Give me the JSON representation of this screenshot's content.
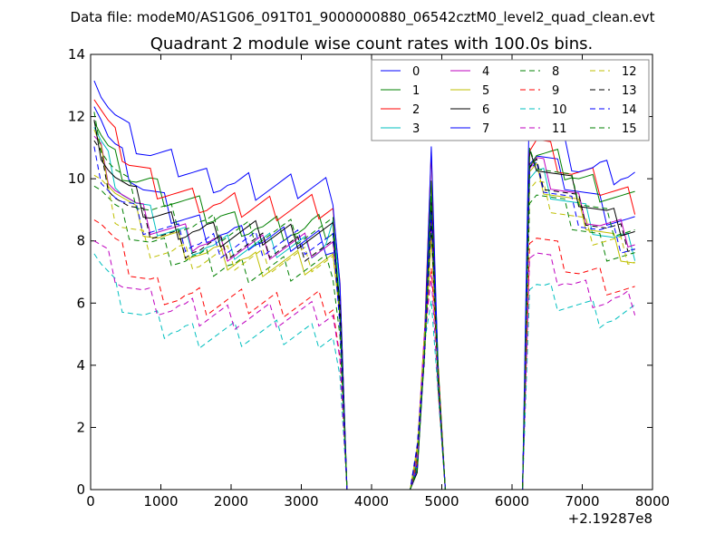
{
  "header": {
    "file_label": "Data file: modeM0/AS1G06_091T01_9000000880_06542cztM0_level2_quad_clean.evt"
  },
  "chart_data": {
    "type": "line",
    "title": "Quadrant 2 module wise count rates with 100.0s bins.",
    "xlabel": "",
    "ylabel": "",
    "x_offset_label": "+2.19287e8",
    "xlim": [
      0,
      8000
    ],
    "ylim": [
      0,
      14
    ],
    "x_ticks": [
      0,
      1000,
      2000,
      3000,
      4000,
      5000,
      6000,
      7000,
      8000
    ],
    "y_ticks": [
      0,
      2,
      4,
      6,
      8,
      10,
      12,
      14
    ],
    "grid": false,
    "legend": {
      "placement": "top-right",
      "columns": 4
    },
    "x": [
      50,
      150,
      250,
      350,
      450,
      550,
      650,
      750,
      850,
      950,
      1050,
      1150,
      1250,
      1350,
      1450,
      1550,
      1650,
      1750,
      1850,
      1950,
      2050,
      2150,
      2250,
      2350,
      2450,
      2550,
      2650,
      2750,
      2850,
      2950,
      3050,
      3150,
      3250,
      3350,
      3450,
      3550,
      3650,
      3750,
      3850,
      3950,
      4050,
      4150,
      4250,
      4350,
      4450,
      4550,
      4650,
      4750,
      4850,
      4950,
      5050,
      5150,
      5250,
      5350,
      5450,
      5550,
      5650,
      5750,
      5850,
      5950,
      6050,
      6150,
      6250,
      6350,
      6450,
      6550,
      6650,
      6750,
      6850,
      6950,
      7050,
      7150,
      7250,
      7350,
      7450,
      7550,
      7650,
      7750
    ],
    "series": [
      {
        "name": "0",
        "color": "#0000ff",
        "dash": "solid",
        "pre": [
          12.6,
          12.0,
          11.3,
          10.9,
          10.6,
          10.3,
          10.0,
          9.7,
          9.5,
          9.3,
          9.1,
          8.9,
          8.8,
          8.7,
          8.6,
          8.5,
          8.4,
          8.3,
          8.3,
          8.2,
          8.2,
          8.1,
          8.1,
          8.1,
          8.0,
          8.0,
          8.0,
          8.0,
          8.0,
          8.0,
          8.0,
          8.0,
          8.0,
          8.0,
          7.9
        ],
        "post": [
          10.8,
          10.9,
          10.7,
          10.5,
          10.3,
          10.1,
          9.9,
          9.7,
          9.5,
          9.3,
          9.1,
          8.9,
          8.8,
          8.7,
          8.6,
          8.5
        ]
      },
      {
        "name": "1",
        "color": "#008000",
        "dash": "solid",
        "pre": [
          12.0,
          11.4,
          10.9,
          10.6,
          10.4,
          10.2,
          10.0,
          9.9,
          9.8,
          9.6,
          9.5,
          9.4,
          9.3,
          9.2,
          9.1,
          9.0,
          8.9,
          8.8,
          8.8,
          8.7,
          8.6,
          8.6,
          8.5,
          8.5,
          8.4,
          8.4,
          8.4,
          8.4,
          8.4,
          8.3,
          8.3,
          8.4,
          8.4,
          8.4,
          8.4
        ],
        "post": [
          10.6,
          10.8,
          10.7,
          10.6,
          10.5,
          10.3,
          10.2,
          10.0,
          9.9,
          9.8,
          9.7,
          9.6,
          9.5,
          9.4,
          9.3,
          9.2
        ]
      },
      {
        "name": "2",
        "color": "#ff0000",
        "dash": "solid",
        "pre": [
          12.6,
          12.1,
          11.6,
          11.2,
          10.9,
          10.6,
          10.4,
          10.2,
          10.0,
          9.8,
          9.7,
          9.6,
          9.5,
          9.4,
          9.3,
          9.3,
          9.2,
          9.2,
          9.1,
          9.1,
          9.1,
          9.1,
          9.1,
          9.1,
          9.1,
          9.1,
          9.1,
          9.1,
          9.1,
          9.1,
          9.1,
          9.1,
          9.1,
          9.1,
          9.1
        ],
        "post": [
          11.0,
          11.2,
          11.0,
          10.8,
          10.6,
          10.4,
          10.2,
          10.1,
          10.0,
          9.9,
          9.8,
          9.7,
          9.6,
          9.5,
          9.4,
          9.3
        ]
      },
      {
        "name": "3",
        "color": "#00bfbf",
        "dash": "solid",
        "pre": [
          11.6,
          11.0,
          10.5,
          10.1,
          9.7,
          9.4,
          9.1,
          8.9,
          8.7,
          8.5,
          8.4,
          8.3,
          8.2,
          8.1,
          8.0,
          7.9,
          7.9,
          7.8,
          7.8,
          7.8,
          7.8,
          7.8,
          7.8,
          7.8,
          7.8,
          7.8,
          7.8,
          7.8,
          7.8,
          7.8,
          7.8,
          7.9,
          7.9,
          8.0,
          8.6
        ],
        "post": [
          10.0,
          10.1,
          10.0,
          9.8,
          9.6,
          9.4,
          9.2,
          9.0,
          8.8,
          8.6,
          8.4,
          8.2,
          8.0,
          7.9,
          7.8,
          7.7
        ]
      },
      {
        "name": "4",
        "color": "#bf00bf",
        "dash": "solid",
        "pre": [
          11.2,
          10.8,
          10.3,
          9.9,
          9.6,
          9.3,
          9.0,
          8.8,
          8.6,
          8.5,
          8.4,
          8.3,
          8.2,
          8.1,
          8.0,
          8.0,
          7.9,
          7.9,
          7.8,
          7.8,
          7.8,
          7.8,
          7.8,
          7.8,
          7.8,
          7.8,
          7.8,
          7.8,
          7.8,
          7.8,
          7.8,
          7.8,
          7.8,
          7.8,
          7.8
        ],
        "post": [
          10.2,
          10.4,
          10.2,
          10.0,
          9.8,
          9.6,
          9.4,
          9.2,
          9.0,
          8.8,
          8.6,
          8.5,
          8.4,
          8.3,
          8.2,
          8.1
        ]
      },
      {
        "name": "5",
        "color": "#bfbf00",
        "dash": "solid",
        "pre": [
          11.3,
          10.6,
          10.1,
          9.7,
          9.4,
          9.1,
          8.8,
          8.6,
          8.4,
          8.2,
          8.1,
          8.0,
          7.9,
          7.8,
          7.7,
          7.6,
          7.5,
          7.5,
          7.4,
          7.4,
          7.4,
          7.4,
          7.3,
          7.3,
          7.3,
          7.3,
          7.3,
          7.3,
          7.3,
          7.3,
          7.3,
          7.3,
          7.3,
          7.3,
          7.3
        ],
        "post": [
          10.0,
          10.1,
          9.9,
          9.7,
          9.5,
          9.3,
          9.1,
          8.9,
          8.7,
          8.5,
          8.3,
          8.1,
          7.9,
          7.8,
          7.6,
          7.4
        ]
      },
      {
        "name": "6",
        "color": "#000000",
        "dash": "solid",
        "pre": [
          11.5,
          11.0,
          10.5,
          10.1,
          9.8,
          9.5,
          9.3,
          9.1,
          8.9,
          8.8,
          8.7,
          8.6,
          8.5,
          8.4,
          8.4,
          8.3,
          8.3,
          8.2,
          8.2,
          8.2,
          8.2,
          8.2,
          8.2,
          8.2,
          8.2,
          8.2,
          8.2,
          8.2,
          8.2,
          8.2,
          8.2,
          8.2,
          8.2,
          8.2,
          8.2
        ],
        "post": [
          10.6,
          10.7,
          10.5,
          10.3,
          10.1,
          9.9,
          9.7,
          9.5,
          9.3,
          9.1,
          8.9,
          8.7,
          8.6,
          8.5,
          8.4,
          8.3
        ]
      },
      {
        "name": "7",
        "color": "#0000ff",
        "dash": "solid",
        "pre": [
          13.6,
          12.9,
          12.4,
          12.0,
          11.7,
          11.4,
          11.2,
          11.0,
          10.8,
          10.7,
          10.6,
          10.5,
          10.4,
          10.3,
          10.2,
          10.1,
          10.0,
          10.0,
          9.9,
          9.9,
          9.8,
          9.8,
          9.8,
          9.7,
          9.7,
          9.7,
          9.7,
          9.7,
          9.7,
          9.7,
          9.7,
          9.7,
          9.7,
          9.7,
          9.6
        ],
        "post": [
          12.5,
          12.4,
          12.2,
          11.8,
          11.4,
          11.0,
          10.7,
          10.5,
          10.4,
          10.3,
          10.3,
          10.2,
          10.2,
          10.2,
          10.1,
          10.1
        ]
      },
      {
        "name": "8",
        "color": "#008000",
        "dash": "dashed",
        "pre": [
          10.1,
          9.8,
          9.4,
          9.0,
          8.7,
          8.5,
          8.3,
          8.1,
          7.9,
          7.8,
          7.7,
          7.6,
          7.5,
          7.4,
          7.4,
          7.3,
          7.3,
          7.2,
          7.2,
          7.2,
          7.1,
          7.1,
          7.1,
          7.1,
          7.1,
          7.1,
          7.1,
          7.1,
          7.1,
          7.1,
          7.1,
          7.1,
          7.1,
          7.1,
          7.1
        ],
        "post": [
          9.6,
          9.7,
          9.5,
          9.3,
          9.1,
          8.9,
          8.7,
          8.5,
          8.3,
          8.1,
          7.9,
          7.8,
          7.7,
          7.6,
          7.5,
          7.4
        ]
      },
      {
        "name": "9",
        "color": "#ff0000",
        "dash": "dashed",
        "pre": [
          8.9,
          8.6,
          8.2,
          7.8,
          7.5,
          7.2,
          7.0,
          6.8,
          6.6,
          6.5,
          6.4,
          6.3,
          6.2,
          6.2,
          6.1,
          6.1,
          6.0,
          6.0,
          6.0,
          6.0,
          6.0,
          6.0,
          6.0,
          6.0,
          6.0,
          6.0,
          6.0,
          6.0,
          6.0,
          6.0,
          6.0,
          6.0,
          6.0,
          6.0,
          6.0
        ],
        "post": [
          8.2,
          8.2,
          8.0,
          7.8,
          7.6,
          7.4,
          7.2,
          7.0,
          6.9,
          6.8,
          6.7,
          6.6,
          6.5,
          6.4,
          6.3,
          6.2
        ]
      },
      {
        "name": "10",
        "color": "#00bfbf",
        "dash": "dashed",
        "pre": [
          7.7,
          7.2,
          6.8,
          6.4,
          6.1,
          5.9,
          5.7,
          5.5,
          5.4,
          5.3,
          5.2,
          5.2,
          5.1,
          5.1,
          5.0,
          5.0,
          5.0,
          5.0,
          5.0,
          5.0,
          5.0,
          5.0,
          5.0,
          5.0,
          5.0,
          5.0,
          5.0,
          5.0,
          5.0,
          5.0,
          5.0,
          5.0,
          5.0,
          5.0,
          5.0
        ],
        "post": [
          6.6,
          6.6,
          6.4,
          6.3,
          6.2,
          6.1,
          6.0,
          5.9,
          5.8,
          5.7,
          5.6,
          5.6,
          5.5,
          5.5,
          5.5,
          5.5
        ]
      },
      {
        "name": "11",
        "color": "#bf00bf",
        "dash": "dashed",
        "pre": [
          8.0,
          7.7,
          7.4,
          7.1,
          6.8,
          6.6,
          6.4,
          6.2,
          6.1,
          6.0,
          5.9,
          5.8,
          5.8,
          5.7,
          5.7,
          5.6,
          5.6,
          5.6,
          5.6,
          5.6,
          5.6,
          5.6,
          5.6,
          5.6,
          5.6,
          5.6,
          5.6,
          5.6,
          5.6,
          5.6,
          5.6,
          5.6,
          5.6,
          5.6,
          5.6
        ],
        "post": [
          7.5,
          7.5,
          7.3,
          7.1,
          6.9,
          6.8,
          6.6,
          6.5,
          6.4,
          6.3,
          6.2,
          6.1,
          6.1,
          6.0,
          6.0,
          6.0
        ]
      },
      {
        "name": "12",
        "color": "#bfbf00",
        "dash": "dashed",
        "pre": [
          10.0,
          9.7,
          9.3,
          8.9,
          8.6,
          8.4,
          8.2,
          8.0,
          7.9,
          7.8,
          7.7,
          7.6,
          7.6,
          7.5,
          7.5,
          7.4,
          7.4,
          7.4,
          7.4,
          7.4,
          7.4,
          7.4,
          7.4,
          7.4,
          7.4,
          7.4,
          7.4,
          7.4,
          7.4,
          7.4,
          7.4,
          7.4,
          7.4,
          7.4,
          7.4
        ],
        "post": [
          9.6,
          9.7,
          9.5,
          9.3,
          9.1,
          8.9,
          8.7,
          8.5,
          8.3,
          8.2,
          8.1,
          8.0,
          7.9,
          7.8,
          7.7,
          7.6
        ]
      },
      {
        "name": "13",
        "color": "#000000",
        "dash": "dashed",
        "pre": [
          11.0,
          10.5,
          10.0,
          9.6,
          9.3,
          9.0,
          8.8,
          8.6,
          8.4,
          8.3,
          8.2,
          8.1,
          8.0,
          7.9,
          7.9,
          7.8,
          7.8,
          7.8,
          7.8,
          7.8,
          7.8,
          7.8,
          7.8,
          7.8,
          7.8,
          7.8,
          7.8,
          7.8,
          7.8,
          7.8,
          7.8,
          7.8,
          7.8,
          7.8,
          7.8
        ],
        "post": [
          10.2,
          10.3,
          10.1,
          9.9,
          9.7,
          9.5,
          9.3,
          9.1,
          8.9,
          8.7,
          8.5,
          8.3,
          8.2,
          8.1,
          8.0,
          7.9
        ]
      },
      {
        "name": "14",
        "color": "#0000ff",
        "dash": "dashed",
        "pre": [
          10.7,
          10.3,
          9.9,
          9.5,
          9.2,
          9.0,
          8.8,
          8.6,
          8.5,
          8.4,
          8.3,
          8.2,
          8.1,
          8.0,
          8.0,
          7.9,
          7.9,
          7.9,
          7.9,
          7.9,
          7.9,
          7.9,
          7.9,
          7.9,
          7.9,
          7.9,
          7.9,
          7.9,
          7.9,
          7.9,
          7.9,
          7.9,
          7.9,
          7.9,
          7.9
        ],
        "post": [
          10.0,
          10.1,
          9.9,
          9.7,
          9.5,
          9.3,
          9.1,
          8.9,
          8.7,
          8.5,
          8.3,
          8.2,
          8.1,
          8.0,
          7.9,
          7.8
        ]
      },
      {
        "name": "15",
        "color": "#008000",
        "dash": "dashed",
        "pre": [
          11.7,
          11.2,
          10.7,
          10.3,
          10.0,
          9.7,
          9.5,
          9.3,
          9.1,
          9.0,
          8.9,
          8.8,
          8.7,
          8.6,
          8.5,
          8.5,
          8.4,
          8.4,
          8.3,
          8.3,
          8.3,
          8.3,
          8.3,
          8.3,
          8.3,
          8.3,
          8.3,
          8.3,
          8.3,
          8.3,
          8.3,
          8.3,
          8.3,
          8.3,
          8.3
        ],
        "post": [
          10.6,
          10.7,
          10.5,
          10.3,
          10.1,
          9.9,
          9.7,
          9.5,
          9.3,
          9.1,
          8.9,
          8.7,
          8.6,
          8.5,
          8.4,
          8.3
        ]
      }
    ]
  }
}
